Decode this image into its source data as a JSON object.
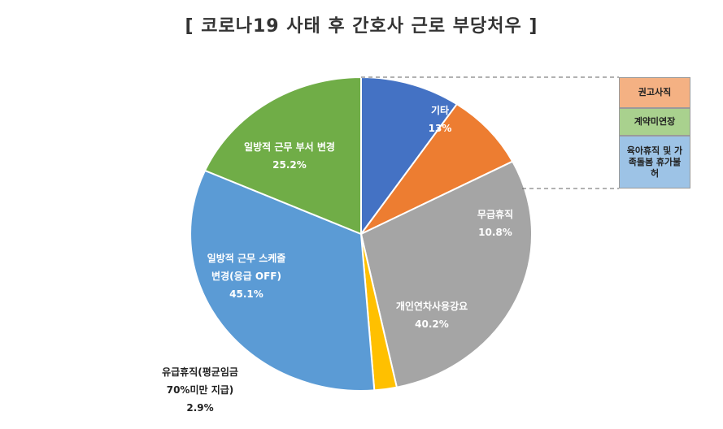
{
  "chart_data": {
    "type": "pie",
    "title": "[ 코로나19 사태 후 간호사 근로 부당처우 ]",
    "slices": [
      {
        "label": "기타",
        "value_label": "13%",
        "value": 13,
        "color": "#4472C4"
      },
      {
        "label": "무급휴직",
        "value_label": "10.8%",
        "value": 10.8,
        "color": "#ED7D31"
      },
      {
        "label": "개인연차사용강요",
        "value_label": "40.2%",
        "value": 40.2,
        "color": "#A5A5A5"
      },
      {
        "label": "유급휴직(평균임금 70%미만 지급)",
        "value_label": "2.9%",
        "value": 2.9,
        "color": "#FFC000"
      },
      {
        "label": "일방적 근무 스케줄 변경(응급 OFF)",
        "value_label": "45.1%",
        "value": 45.1,
        "color": "#5B9BD5"
      },
      {
        "label": "일방적 근무 부서 변경",
        "value_label": "25.2%",
        "value": 25.2,
        "color": "#70AD47"
      }
    ],
    "breakdown_of": "기타",
    "breakdown": [
      {
        "label": "권고사직",
        "color": "#F4B183"
      },
      {
        "label": "계약미연장",
        "color": "#A9D18E"
      },
      {
        "label": "육아휴직 및 가족돌봄 휴가불허",
        "color": "#9DC3E6"
      }
    ]
  }
}
